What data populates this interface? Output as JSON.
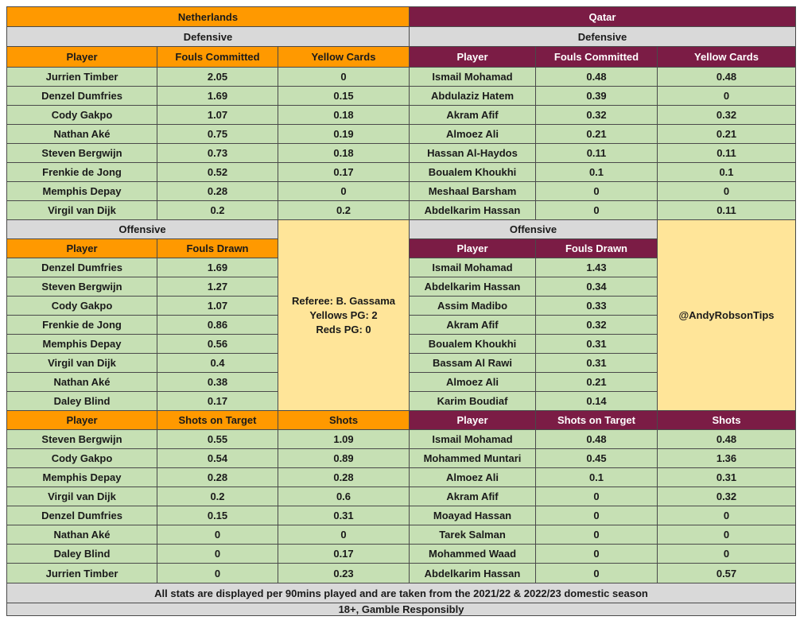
{
  "netherlands": {
    "team": "Netherlands",
    "defensive": {
      "label": "Defensive",
      "headers": [
        "Player",
        "Fouls Committed",
        "Yellow Cards"
      ],
      "rows": [
        [
          "Jurrien Timber",
          "2.05",
          "0"
        ],
        [
          "Denzel Dumfries",
          "1.69",
          "0.15"
        ],
        [
          "Cody Gakpo",
          "1.07",
          "0.18"
        ],
        [
          "Nathan Aké",
          "0.75",
          "0.19"
        ],
        [
          "Steven Bergwijn",
          "0.73",
          "0.18"
        ],
        [
          "Frenkie de Jong",
          "0.52",
          "0.17"
        ],
        [
          "Memphis Depay",
          "0.28",
          "0"
        ],
        [
          "Virgil van Dijk",
          "0.2",
          "0.2"
        ]
      ]
    },
    "offensive": {
      "label": "Offensive",
      "headers": [
        "Player",
        "Fouls Drawn"
      ],
      "rows": [
        [
          "Denzel Dumfries",
          "1.69"
        ],
        [
          "Steven Bergwijn",
          "1.27"
        ],
        [
          "Cody Gakpo",
          "1.07"
        ],
        [
          "Frenkie de Jong",
          "0.86"
        ],
        [
          "Memphis Depay",
          "0.56"
        ],
        [
          "Virgil van Dijk",
          "0.4"
        ],
        [
          "Nathan Aké",
          "0.38"
        ],
        [
          "Daley Blind",
          "0.17"
        ]
      ]
    },
    "shots": {
      "headers": [
        "Player",
        "Shots on Target",
        "Shots"
      ],
      "rows": [
        [
          "Steven Bergwijn",
          "0.55",
          "1.09"
        ],
        [
          "Cody Gakpo",
          "0.54",
          "0.89"
        ],
        [
          "Memphis Depay",
          "0.28",
          "0.28"
        ],
        [
          "Virgil van Dijk",
          "0.2",
          "0.6"
        ],
        [
          "Denzel Dumfries",
          "0.15",
          "0.31"
        ],
        [
          "Nathan Aké",
          "0",
          "0"
        ],
        [
          "Daley Blind",
          "0",
          "0.17"
        ],
        [
          "Jurrien Timber",
          "0",
          "0.23"
        ]
      ]
    }
  },
  "qatar": {
    "team": "Qatar",
    "defensive": {
      "label": "Defensive",
      "headers": [
        "Player",
        "Fouls Committed",
        "Yellow Cards"
      ],
      "rows": [
        [
          "Ismail Mohamad",
          "0.48",
          "0.48"
        ],
        [
          "Abdulaziz Hatem",
          "0.39",
          "0"
        ],
        [
          "Akram Afif",
          "0.32",
          "0.32"
        ],
        [
          "Almoez Ali",
          "0.21",
          "0.21"
        ],
        [
          "Hassan Al-Haydos",
          "0.11",
          "0.11"
        ],
        [
          "Boualem Khoukhi",
          "0.1",
          "0.1"
        ],
        [
          "Meshaal Barsham",
          "0",
          "0"
        ],
        [
          "Abdelkarim Hassan",
          "0",
          "0.11"
        ]
      ]
    },
    "offensive": {
      "label": "Offensive",
      "headers": [
        "Player",
        "Fouls Drawn"
      ],
      "rows": [
        [
          "Ismail Mohamad",
          "1.43"
        ],
        [
          "Abdelkarim Hassan",
          "0.34"
        ],
        [
          "Assim Madibo",
          "0.33"
        ],
        [
          "Akram Afif",
          "0.32"
        ],
        [
          "Boualem Khoukhi",
          "0.31"
        ],
        [
          "Bassam Al Rawi",
          "0.31"
        ],
        [
          "Almoez Ali",
          "0.21"
        ],
        [
          "Karim Boudiaf",
          "0.14"
        ]
      ]
    },
    "shots": {
      "headers": [
        "Player",
        "Shots on Target",
        "Shots"
      ],
      "rows": [
        [
          "Ismail Mohamad",
          "0.48",
          "0.48"
        ],
        [
          "Mohammed Muntari",
          "0.45",
          "1.36"
        ],
        [
          "Almoez Ali",
          "0.1",
          "0.31"
        ],
        [
          "Akram Afif",
          "0",
          "0.32"
        ],
        [
          "Moayad Hassan",
          "0",
          "0"
        ],
        [
          "Tarek Salman",
          "0",
          "0"
        ],
        [
          "Mohammed Waad",
          "0",
          "0"
        ],
        [
          "Abdelkarim Hassan",
          "0",
          "0.57"
        ]
      ]
    }
  },
  "referee": {
    "name": "Referee: B. Gassama",
    "yellows": "Yellows PG: 2",
    "reds": "Reds PG: 0"
  },
  "handle": "@AndyRobsonTips",
  "footer": {
    "note": "All stats are displayed per 90mins played and are taken from the 2021/22 & 2022/23 domestic season",
    "disclaimer": "18+, Gamble Responsibly"
  }
}
